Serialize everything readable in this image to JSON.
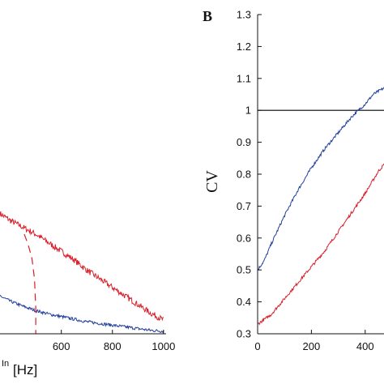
{
  "chart_data": [
    {
      "type": "line",
      "panel_label": "",
      "xlabel": "In [Hz]",
      "xlabel_prefix": "",
      "xlabel_sup": "In",
      "xlabel_unit": "[Hz]",
      "ylabel": "",
      "xlim": [
        360,
        1010
      ],
      "ylim": [
        0,
        1
      ],
      "x_ticks": [
        600,
        800,
        1000
      ],
      "series": [
        {
          "name": "",
          "color": "#d81e2a",
          "style": "noisy",
          "x": [
            360,
            400,
            450,
            500,
            550,
            600,
            650,
            700,
            750,
            800,
            850,
            900,
            950,
            1000
          ],
          "y": [
            0.7,
            0.66,
            0.62,
            0.58,
            0.53,
            0.48,
            0.43,
            0.37,
            0.32,
            0.27,
            0.22,
            0.17,
            0.12,
            0.08
          ]
        },
        {
          "name": "",
          "color": "#22409a",
          "style": "noisy",
          "x": [
            360,
            400,
            450,
            500,
            550,
            600,
            650,
            700,
            750,
            800,
            850,
            900,
            950,
            1000
          ],
          "y": [
            0.22,
            0.19,
            0.16,
            0.135,
            0.115,
            0.1,
            0.085,
            0.07,
            0.06,
            0.05,
            0.04,
            0.03,
            0.02,
            0.015
          ]
        },
        {
          "name": "",
          "color": "#d81e2a",
          "style": "dashed",
          "x": [
            455,
            470,
            485,
            495,
            500,
            500
          ],
          "y": [
            0.58,
            0.52,
            0.44,
            0.32,
            0.15,
            0.0
          ]
        }
      ]
    },
    {
      "type": "line",
      "panel_label": "B",
      "xlabel": "",
      "ylabel": "CV",
      "xlim": [
        0,
        470
      ],
      "ylim": [
        0.3,
        1.3
      ],
      "x_ticks": [
        0,
        200,
        400
      ],
      "x_tick_labels": [
        "0",
        "200",
        "400"
      ],
      "y_ticks": [
        0.3,
        0.4,
        0.5,
        0.6,
        0.7,
        0.8,
        0.9,
        1.0,
        1.1,
        1.2,
        1.3
      ],
      "y_tick_labels": [
        "0.3",
        "0.4",
        "0.5",
        "0.6",
        "0.7",
        "0.8",
        "0.9",
        "1",
        "1.1",
        "1.2",
        "1.3"
      ],
      "series": [
        {
          "name": "",
          "color": "#000000",
          "style": "solid",
          "x": [
            0,
            470
          ],
          "y": [
            1.0,
            1.0
          ]
        },
        {
          "name": "",
          "color": "#22409a",
          "style": "noisy",
          "x": [
            0,
            25,
            50,
            100,
            150,
            200,
            250,
            300,
            350,
            400,
            430,
            470
          ],
          "y": [
            0.5,
            0.53,
            0.58,
            0.67,
            0.75,
            0.82,
            0.88,
            0.93,
            0.98,
            1.02,
            1.05,
            1.07
          ]
        },
        {
          "name": "",
          "color": "#d81e2a",
          "style": "noisy",
          "x": [
            0,
            50,
            100,
            150,
            200,
            250,
            300,
            350,
            400,
            450,
            470
          ],
          "y": [
            0.33,
            0.36,
            0.41,
            0.46,
            0.51,
            0.56,
            0.62,
            0.68,
            0.74,
            0.81,
            0.83
          ]
        }
      ]
    }
  ]
}
